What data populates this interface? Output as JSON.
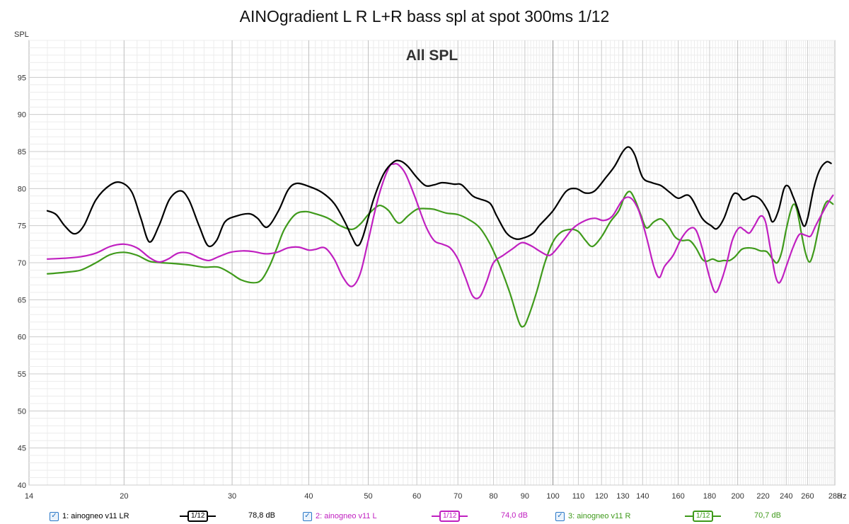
{
  "title": "AINOgradient L R L+R bass spl at spot 300ms 1/12",
  "chart_data": {
    "type": "line",
    "inner_title": "All SPL",
    "ylabel": "SPL",
    "xunit": "Hz",
    "xscale": "log",
    "xlim": [
      14,
      288
    ],
    "ylim": [
      40,
      100
    ],
    "yticks": [
      40,
      45,
      50,
      55,
      60,
      65,
      70,
      75,
      80,
      85,
      90,
      95
    ],
    "xticks": [
      14,
      20,
      30,
      40,
      50,
      60,
      70,
      80,
      90,
      100,
      110,
      120,
      130,
      140,
      160,
      180,
      200,
      220,
      240,
      260,
      288
    ],
    "grid": true,
    "series": [
      {
        "name": "1: ainogneo v11 LR",
        "color": "#000000",
        "smoothing": "1/12",
        "level": "78,8 dB",
        "points": [
          [
            15,
            77
          ],
          [
            15.5,
            76.5
          ],
          [
            16,
            75
          ],
          [
            16.6,
            73.9
          ],
          [
            17.2,
            75
          ],
          [
            18,
            78.5
          ],
          [
            19,
            80.5
          ],
          [
            19.8,
            80.8
          ],
          [
            20.6,
            79.5
          ],
          [
            21.3,
            76
          ],
          [
            22,
            72.8
          ],
          [
            22.8,
            75
          ],
          [
            23.7,
            78.5
          ],
          [
            24.7,
            79.7
          ],
          [
            25.5,
            78.5
          ],
          [
            26.5,
            75
          ],
          [
            27.4,
            72.3
          ],
          [
            28.3,
            73
          ],
          [
            29.2,
            75.5
          ],
          [
            30.5,
            76.3
          ],
          [
            32,
            76.6
          ],
          [
            33,
            76
          ],
          [
            34.2,
            74.8
          ],
          [
            35.7,
            77
          ],
          [
            37,
            79.8
          ],
          [
            38.2,
            80.7
          ],
          [
            40,
            80.3
          ],
          [
            42,
            79.5
          ],
          [
            44,
            78
          ],
          [
            45.8,
            75.5
          ],
          [
            47,
            73.5
          ],
          [
            48,
            72.3
          ],
          [
            49,
            73.5
          ],
          [
            51,
            78.5
          ],
          [
            53,
            82
          ],
          [
            55,
            83.6
          ],
          [
            56.5,
            83.7
          ],
          [
            58,
            83
          ],
          [
            60,
            81.5
          ],
          [
            62,
            80.4
          ],
          [
            64,
            80.5
          ],
          [
            66,
            80.8
          ],
          [
            69,
            80.6
          ],
          [
            71,
            80.5
          ],
          [
            74,
            79
          ],
          [
            76,
            78.6
          ],
          [
            79,
            78
          ],
          [
            81,
            76.3
          ],
          [
            84,
            74
          ],
          [
            87,
            73.2
          ],
          [
            90,
            73.4
          ],
          [
            93,
            74
          ],
          [
            95,
            75
          ],
          [
            100,
            77
          ],
          [
            105,
            79.6
          ],
          [
            109,
            80
          ],
          [
            113,
            79.4
          ],
          [
            117,
            79.7
          ],
          [
            122,
            81.5
          ],
          [
            126,
            83
          ],
          [
            130,
            85
          ],
          [
            133,
            85.6
          ],
          [
            136,
            84.5
          ],
          [
            140,
            81.5
          ],
          [
            145,
            80.8
          ],
          [
            150,
            80.4
          ],
          [
            155,
            79.5
          ],
          [
            160,
            78.7
          ],
          [
            167,
            79
          ],
          [
            175,
            76
          ],
          [
            181,
            75
          ],
          [
            185,
            74.6
          ],
          [
            190,
            76
          ],
          [
            196,
            79
          ],
          [
            200,
            79.3
          ],
          [
            204,
            78.5
          ],
          [
            208,
            78.7
          ],
          [
            212,
            79
          ],
          [
            218,
            78.5
          ],
          [
            224,
            77
          ],
          [
            228,
            75.5
          ],
          [
            233,
            77
          ],
          [
            238,
            80
          ],
          [
            242,
            80.3
          ],
          [
            246,
            79
          ],
          [
            250,
            77.5
          ],
          [
            256,
            75
          ],
          [
            260,
            76
          ],
          [
            266,
            80
          ],
          [
            272,
            82.5
          ],
          [
            279,
            83.6
          ],
          [
            284,
            83.4
          ]
        ]
      },
      {
        "name": "2: ainogneo v11 L",
        "color": "#c020c0",
        "smoothing": "1/12",
        "level": "74,0 dB",
        "points": [
          [
            15,
            70.5
          ],
          [
            16,
            70.6
          ],
          [
            17,
            70.8
          ],
          [
            18,
            71.3
          ],
          [
            19,
            72.2
          ],
          [
            20,
            72.5
          ],
          [
            21,
            72
          ],
          [
            22,
            70.7
          ],
          [
            22.8,
            70.1
          ],
          [
            23.6,
            70.5
          ],
          [
            24.5,
            71.3
          ],
          [
            25.5,
            71.3
          ],
          [
            26.6,
            70.6
          ],
          [
            27.5,
            70.3
          ],
          [
            28.5,
            70.8
          ],
          [
            29.8,
            71.4
          ],
          [
            31.2,
            71.6
          ],
          [
            32.5,
            71.5
          ],
          [
            34,
            71.2
          ],
          [
            35.5,
            71.4
          ],
          [
            37,
            72
          ],
          [
            38.5,
            72.1
          ],
          [
            40,
            71.7
          ],
          [
            41,
            71.8
          ],
          [
            42.5,
            72
          ],
          [
            44,
            70.5
          ],
          [
            45.5,
            68
          ],
          [
            47,
            66.8
          ],
          [
            48.5,
            68.5
          ],
          [
            50,
            73
          ],
          [
            52,
            79
          ],
          [
            54,
            82.8
          ],
          [
            55,
            83.3
          ],
          [
            56,
            83.2
          ],
          [
            57.5,
            82
          ],
          [
            59.5,
            79
          ],
          [
            62,
            75
          ],
          [
            64,
            73
          ],
          [
            66,
            72.5
          ],
          [
            68,
            72
          ],
          [
            70,
            70.5
          ],
          [
            72,
            68
          ],
          [
            74,
            65.5
          ],
          [
            76,
            65.4
          ],
          [
            78,
            67.5
          ],
          [
            80,
            70
          ],
          [
            83,
            71
          ],
          [
            86,
            71.9
          ],
          [
            89,
            72.7
          ],
          [
            92,
            72.3
          ],
          [
            95,
            71.6
          ],
          [
            98,
            71
          ],
          [
            100,
            71.3
          ],
          [
            104,
            73
          ],
          [
            108,
            74.7
          ],
          [
            113,
            75.7
          ],
          [
            117,
            76
          ],
          [
            121,
            75.7
          ],
          [
            125,
            76.3
          ],
          [
            130,
            78.5
          ],
          [
            134,
            78.7
          ],
          [
            138,
            77
          ],
          [
            142,
            73.5
          ],
          [
            146,
            69.5
          ],
          [
            149,
            68
          ],
          [
            152,
            69.5
          ],
          [
            157,
            71
          ],
          [
            162,
            73.3
          ],
          [
            167,
            74.6
          ],
          [
            171,
            74.4
          ],
          [
            175,
            72
          ],
          [
            180,
            68
          ],
          [
            184,
            66
          ],
          [
            188,
            67.5
          ],
          [
            192,
            70
          ],
          [
            196,
            73
          ],
          [
            201,
            74.7
          ],
          [
            205,
            74.4
          ],
          [
            209,
            74
          ],
          [
            213,
            75
          ],
          [
            218,
            76.3
          ],
          [
            222,
            75.5
          ],
          [
            226,
            72
          ],
          [
            230,
            68.5
          ],
          [
            233,
            67.3
          ],
          [
            236,
            67.8
          ],
          [
            240,
            69.5
          ],
          [
            246,
            72
          ],
          [
            252,
            73.8
          ],
          [
            258,
            73.7
          ],
          [
            263,
            73.6
          ],
          [
            268,
            75
          ],
          [
            274,
            76.5
          ],
          [
            280,
            77.9
          ],
          [
            286,
            79.1
          ]
        ]
      },
      {
        "name": "3: ainogneo v11 R",
        "color": "#3f9a1b",
        "smoothing": "1/12",
        "level": "70,7 dB",
        "points": [
          [
            15,
            68.5
          ],
          [
            16,
            68.7
          ],
          [
            17,
            69
          ],
          [
            18,
            70
          ],
          [
            19,
            71.1
          ],
          [
            20,
            71.4
          ],
          [
            21,
            71
          ],
          [
            22,
            70.2
          ],
          [
            23,
            70
          ],
          [
            24,
            69.9
          ],
          [
            25.5,
            69.7
          ],
          [
            27,
            69.4
          ],
          [
            28.5,
            69.4
          ],
          [
            29.8,
            68.6
          ],
          [
            31,
            67.7
          ],
          [
            32.5,
            67.3
          ],
          [
            33.5,
            67.7
          ],
          [
            34.5,
            69.5
          ],
          [
            35.5,
            72
          ],
          [
            36.5,
            74.5
          ],
          [
            38,
            76.5
          ],
          [
            39.5,
            76.9
          ],
          [
            41,
            76.6
          ],
          [
            43,
            76
          ],
          [
            45,
            75
          ],
          [
            47,
            74.5
          ],
          [
            48.5,
            75.2
          ],
          [
            50,
            76.5
          ],
          [
            51.5,
            77.5
          ],
          [
            52.5,
            77.7
          ],
          [
            54,
            77
          ],
          [
            55.5,
            75.6
          ],
          [
            56.5,
            75.4
          ],
          [
            58,
            76.3
          ],
          [
            60,
            77.2
          ],
          [
            62,
            77.3
          ],
          [
            64,
            77.2
          ],
          [
            67,
            76.7
          ],
          [
            70,
            76.5
          ],
          [
            73,
            75.8
          ],
          [
            76,
            74.7
          ],
          [
            79,
            72.5
          ],
          [
            82,
            69.5
          ],
          [
            85,
            66
          ],
          [
            88,
            62
          ],
          [
            89.5,
            61.4
          ],
          [
            91,
            62.5
          ],
          [
            94,
            66
          ],
          [
            97,
            70
          ],
          [
            100,
            72.8
          ],
          [
            103,
            74.1
          ],
          [
            107,
            74.5
          ],
          [
            110,
            74.2
          ],
          [
            113,
            73
          ],
          [
            116,
            72.2
          ],
          [
            120,
            73.5
          ],
          [
            124,
            75.5
          ],
          [
            128,
            77
          ],
          [
            131,
            79
          ],
          [
            133.5,
            79.6
          ],
          [
            136,
            78.5
          ],
          [
            139,
            76.5
          ],
          [
            142,
            74.7
          ],
          [
            146,
            75.5
          ],
          [
            150,
            75.9
          ],
          [
            154,
            75
          ],
          [
            158,
            73.5
          ],
          [
            162,
            73
          ],
          [
            167,
            73
          ],
          [
            171,
            72
          ],
          [
            175,
            70.5
          ],
          [
            178,
            70.2
          ],
          [
            182,
            70.5
          ],
          [
            186,
            70.2
          ],
          [
            190,
            70.3
          ],
          [
            194,
            70.3
          ],
          [
            198,
            70.8
          ],
          [
            203,
            71.8
          ],
          [
            208,
            72
          ],
          [
            213,
            71.9
          ],
          [
            218,
            71.6
          ],
          [
            223,
            71.5
          ],
          [
            228,
            70.5
          ],
          [
            232,
            70
          ],
          [
            236,
            71.5
          ],
          [
            240,
            74.5
          ],
          [
            244,
            77
          ],
          [
            247,
            77.9
          ],
          [
            250,
            77
          ],
          [
            254,
            74
          ],
          [
            258,
            71.3
          ],
          [
            262,
            70.1
          ],
          [
            266,
            71.5
          ],
          [
            270,
            74
          ],
          [
            275,
            77
          ],
          [
            280,
            78.3
          ],
          [
            286,
            77.9
          ]
        ]
      }
    ]
  },
  "legend": [
    {
      "label": "1: ainogneo v11 LR",
      "smoothing": "1/12",
      "level": "78,8 dB",
      "color": "#000000"
    },
    {
      "label": "2: ainogneo v11 L",
      "smoothing": "1/12",
      "level": "74,0 dB",
      "color": "#c020c0"
    },
    {
      "label": "3: ainogneo v11 R",
      "smoothing": "1/12",
      "level": "70,7 dB",
      "color": "#3f9a1b"
    }
  ]
}
